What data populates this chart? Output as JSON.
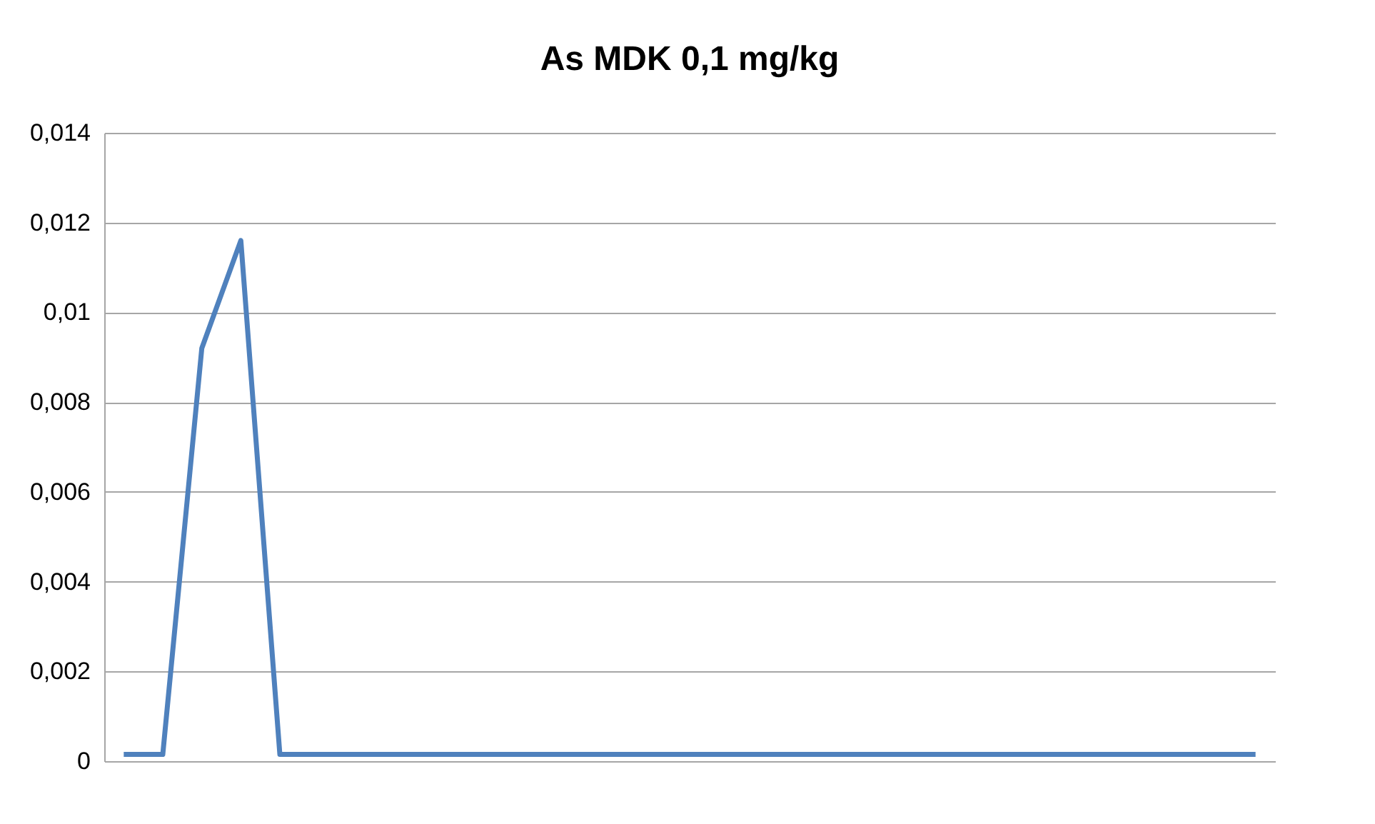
{
  "chart_data": {
    "type": "line",
    "title": "As MDK 0,1 mg/kg",
    "categories": [
      null,
      null,
      null,
      null,
      null,
      null,
      null,
      null,
      null,
      null,
      null,
      null,
      null,
      null,
      null,
      null,
      null,
      null,
      null,
      null,
      null,
      null,
      null,
      null,
      null,
      null,
      null,
      null,
      null,
      null
    ],
    "series": [
      {
        "color": "#4f81bd",
        "values": [
          0.00015,
          0.00015,
          0.0092,
          0.0116,
          0.00015,
          0.00015,
          0.00015,
          0.00015,
          0.00015,
          0.00015,
          0.00015,
          0.00015,
          0.00015,
          0.00015,
          0.00015,
          0.00015,
          0.00015,
          0.00015,
          0.00015,
          0.00015,
          0.00015,
          0.00015,
          0.00015,
          0.00015,
          0.00015,
          0.00015,
          0.00015,
          0.00015,
          0.00015,
          0.00015
        ]
      }
    ],
    "ylim": [
      0,
      0.014
    ],
    "yticks": [
      0,
      {
        "value": 0.002,
        "label": "0,002"
      },
      {
        "value": 0.004,
        "label": "0,004"
      },
      {
        "value": 0.006,
        "label": "0,006"
      },
      {
        "value": 0.008,
        "label": "0,008"
      },
      {
        "value": 0.01,
        "label": "0,01"
      },
      {
        "value": 0.012,
        "label": "0,012"
      },
      {
        "value": 0.014,
        "label": "0,014"
      }
    ],
    "grid": "y",
    "tick_labels": "y",
    "marker": "none",
    "line_style": "solid"
  }
}
